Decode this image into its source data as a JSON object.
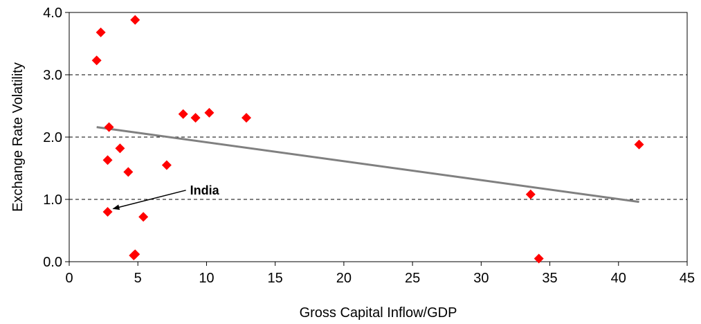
{
  "chart_data": {
    "type": "scatter",
    "title": "",
    "xlabel": "Gross Capital Inflow/GDP",
    "ylabel": "Exchange Rate Volatility",
    "xlim": [
      0,
      45
    ],
    "ylim": [
      0,
      4
    ],
    "x_ticks": [
      0,
      5,
      10,
      15,
      20,
      25,
      30,
      35,
      40,
      45
    ],
    "y_ticks": [
      0,
      1,
      2,
      3,
      4
    ],
    "x_tick_labels": [
      "0",
      "5",
      "10",
      "15",
      "20",
      "25",
      "30",
      "35",
      "40",
      "45"
    ],
    "y_tick_labels": [
      "0.0",
      "1.0",
      "2.0",
      "3.0",
      "4.0"
    ],
    "grid": "horizontal dashed",
    "legend": "none",
    "marker_color": "#ff0000",
    "trend_color": "#808080",
    "series": [
      {
        "points": [
          {
            "x": 2.0,
            "y": 3.23
          },
          {
            "x": 2.3,
            "y": 3.68
          },
          {
            "x": 4.8,
            "y": 3.88
          },
          {
            "x": 2.9,
            "y": 2.16
          },
          {
            "x": 2.8,
            "y": 1.63
          },
          {
            "x": 3.7,
            "y": 1.82
          },
          {
            "x": 4.3,
            "y": 1.44
          },
          {
            "x": 2.8,
            "y": 0.8
          },
          {
            "x": 5.4,
            "y": 0.72
          },
          {
            "x": 4.7,
            "y": 0.1
          },
          {
            "x": 4.8,
            "y": 0.12
          },
          {
            "x": 7.1,
            "y": 1.55
          },
          {
            "x": 8.3,
            "y": 2.37
          },
          {
            "x": 9.2,
            "y": 2.31
          },
          {
            "x": 10.2,
            "y": 2.39
          },
          {
            "x": 12.9,
            "y": 2.31
          },
          {
            "x": 33.6,
            "y": 1.08
          },
          {
            "x": 34.2,
            "y": 0.05
          },
          {
            "x": 41.5,
            "y": 1.88
          }
        ]
      }
    ],
    "trendline": {
      "x": [
        2.0,
        41.5
      ],
      "y": [
        2.16,
        0.96
      ]
    },
    "annotations": [
      {
        "text": "India",
        "text_x": 8.8,
        "text_y": 1.08,
        "arrow_to_x": 3.2,
        "arrow_to_y": 0.85
      }
    ]
  }
}
